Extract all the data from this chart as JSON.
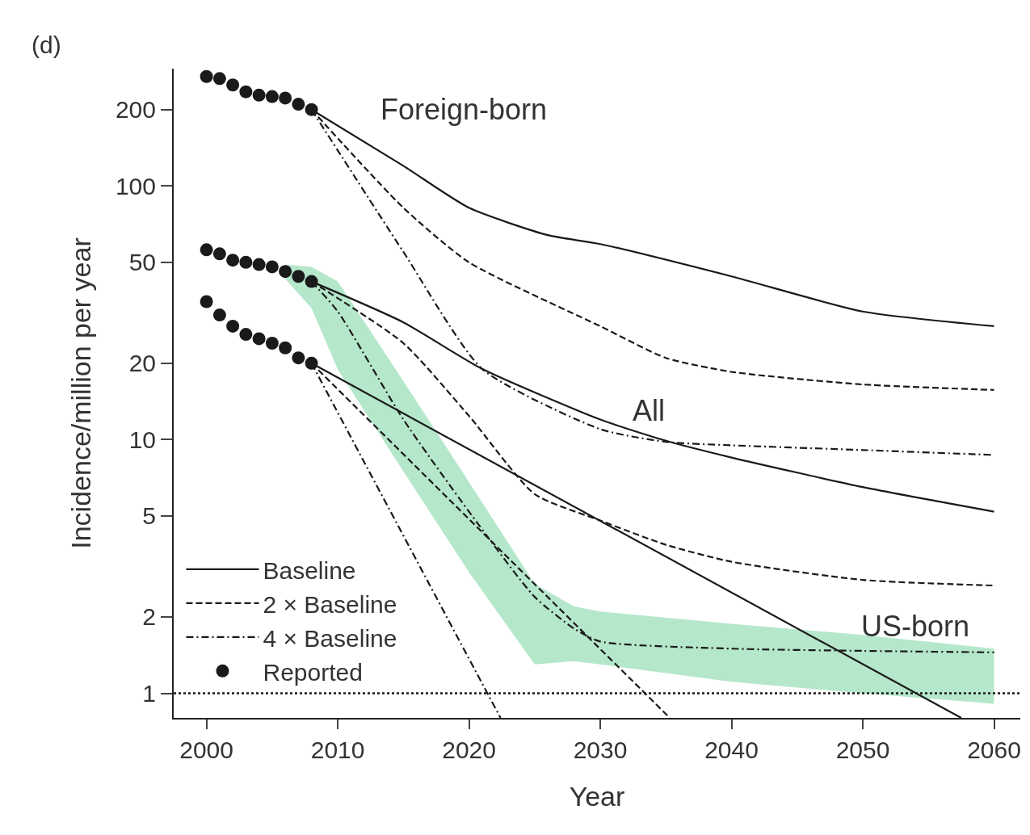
{
  "chart_data": {
    "type": "line",
    "xlabel": "Year",
    "ylabel": "Incidence/million per year",
    "log": "y",
    "xlim": [
      1997.5,
      2062
    ],
    "xticks": [
      2000,
      2010,
      2020,
      2030,
      2040,
      2050,
      2060
    ],
    "ylim": [
      0.8,
      290
    ],
    "yticks": [
      1,
      2,
      5,
      10,
      20,
      50,
      100,
      200
    ],
    "grid": false,
    "legend": "bottom left",
    "series": [
      {
        "name": "Baseline",
        "color": "#1a1a1a",
        "line_style": "solid",
        "x": [
          2008,
          2015,
          2020,
          2026,
          2030,
          2040,
          2050,
          2060
        ],
        "values": [
          200,
          120,
          82,
          64,
          59,
          44,
          32,
          28
        ]
      },
      {
        "name": "2 × Baseline",
        "color": "#1a1a1a",
        "line_style": "dashed",
        "x": [
          2008,
          2015,
          2020,
          2030,
          2035,
          2040,
          2050,
          2060
        ],
        "values": [
          200,
          82,
          50,
          28,
          21,
          18.5,
          16.5,
          15.7
        ]
      },
      {
        "name": "4 × Baseline",
        "color": "#1a1a1a",
        "line_style": "dashdot",
        "x": [
          2008,
          2015,
          2021,
          2030,
          2035,
          2040,
          2050,
          2060
        ],
        "values": [
          200,
          55,
          19,
          11,
          9.8,
          9.5,
          9.1,
          8.7
        ]
      },
      {
        "color": "#1a1a1a",
        "line_style": "solid",
        "x": [
          2008,
          2015,
          2021,
          2030,
          2035,
          2040,
          2050,
          2060
        ],
        "values": [
          42,
          29,
          19,
          12,
          9.9,
          8.5,
          6.5,
          5.2
        ]
      },
      {
        "color": "#1a1a1a",
        "line_style": "dashed",
        "x": [
          2008,
          2015,
          2020,
          2025,
          2030,
          2035,
          2040,
          2050,
          2060
        ],
        "values": [
          42,
          24,
          12.4,
          6.1,
          4.8,
          3.85,
          3.3,
          2.8,
          2.66
        ]
      },
      {
        "color": "#1a1a1a",
        "line_style": "dashdot",
        "x": [
          2006,
          2008,
          2010,
          2015,
          2020,
          2025,
          2028,
          2030,
          2040,
          2050,
          2060
        ],
        "values": [
          null,
          42,
          32,
          12,
          5.2,
          2.4,
          1.8,
          1.6,
          1.5,
          1.47,
          1.45
        ],
        "lower": [
          43,
          33,
          18.9,
          7.5,
          3.0,
          1.3,
          1.34,
          1.3,
          1.11,
          1.0,
          0.91
        ],
        "upper": [
          49,
          48,
          42,
          17,
          6.8,
          2.7,
          2.2,
          2.1,
          1.88,
          1.7,
          1.5
        ]
      },
      {
        "color": "#1a1a1a",
        "line_style": "solid",
        "x": [
          2008,
          2057.5
        ],
        "values": [
          20,
          0.8
        ]
      },
      {
        "color": "#1a1a1a",
        "line_style": "dashed",
        "x": [
          2008,
          2035.3
        ],
        "values": [
          20,
          0.8
        ]
      },
      {
        "color": "#1a1a1a",
        "line_style": "dashdot",
        "x": [
          2008,
          2022.4
        ],
        "values": [
          20,
          0.8
        ]
      },
      {
        "name": "Reported",
        "type": "scatter",
        "marker": "circle",
        "color": "#1a1a1a",
        "x": [
          2000,
          2001,
          2002,
          2003,
          2004,
          2005,
          2006,
          2007,
          2008
        ],
        "values": [
          270,
          265,
          250,
          235,
          228,
          225,
          222,
          210,
          200
        ]
      },
      {
        "type": "scatter",
        "marker": "circle",
        "color": "#1a1a1a",
        "x": [
          2000,
          2001,
          2002,
          2003,
          2004,
          2005,
          2006,
          2007,
          2008
        ],
        "values": [
          56,
          54,
          51,
          50,
          49,
          48,
          46,
          44,
          42
        ]
      },
      {
        "type": "scatter",
        "marker": "circle",
        "color": "#1a1a1a",
        "x": [
          2000,
          2001,
          2002,
          2003,
          2004,
          2005,
          2006,
          2007,
          2008
        ],
        "values": [
          35,
          31,
          28,
          26,
          25,
          24,
          23,
          21,
          20
        ]
      }
    ],
    "ref_lines": [
      {
        "axis": "y",
        "value": 1,
        "color": "#1a1a1a",
        "line_style": "dotted"
      }
    ],
    "annotations": [
      "(d)",
      "Foreign-born",
      "All",
      "US-born"
    ]
  }
}
